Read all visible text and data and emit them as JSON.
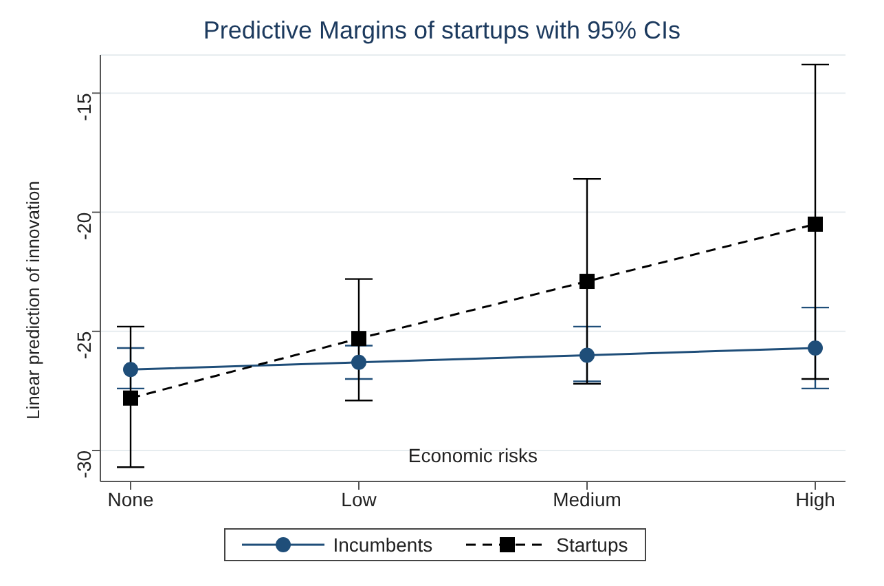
{
  "chart_data": {
    "type": "line",
    "title": "Predictive Margins of startups with 95% CIs",
    "xlabel": "Economic risks",
    "ylabel": "Linear prediction of innovation",
    "categories": [
      "None",
      "Low",
      "Medium",
      "High"
    ],
    "series": [
      {
        "name": "Incumbents",
        "color": "#1f4e79",
        "marker": "circle",
        "line_style": "solid",
        "values": [
          -26.6,
          -26.3,
          -26.0,
          -25.7
        ],
        "errors": [
          [
            -27.4,
            -25.7
          ],
          [
            -27.0,
            -25.6
          ],
          [
            -27.1,
            -24.8
          ],
          [
            -27.4,
            -24.0
          ]
        ]
      },
      {
        "name": "Startups",
        "color": "#000000",
        "marker": "square",
        "line_style": "dashed",
        "values": [
          -27.8,
          -25.3,
          -22.9,
          -20.5
        ],
        "errors": [
          [
            -30.7,
            -24.8
          ],
          [
            -27.9,
            -22.8
          ],
          [
            -27.2,
            -18.6
          ],
          [
            -27.0,
            -13.8
          ]
        ]
      }
    ],
    "ylim": [
      -31.3,
      -13.4
    ],
    "yticks": [
      -30,
      -25,
      -20,
      -15
    ],
    "grid": "y",
    "legend": "bottom"
  }
}
